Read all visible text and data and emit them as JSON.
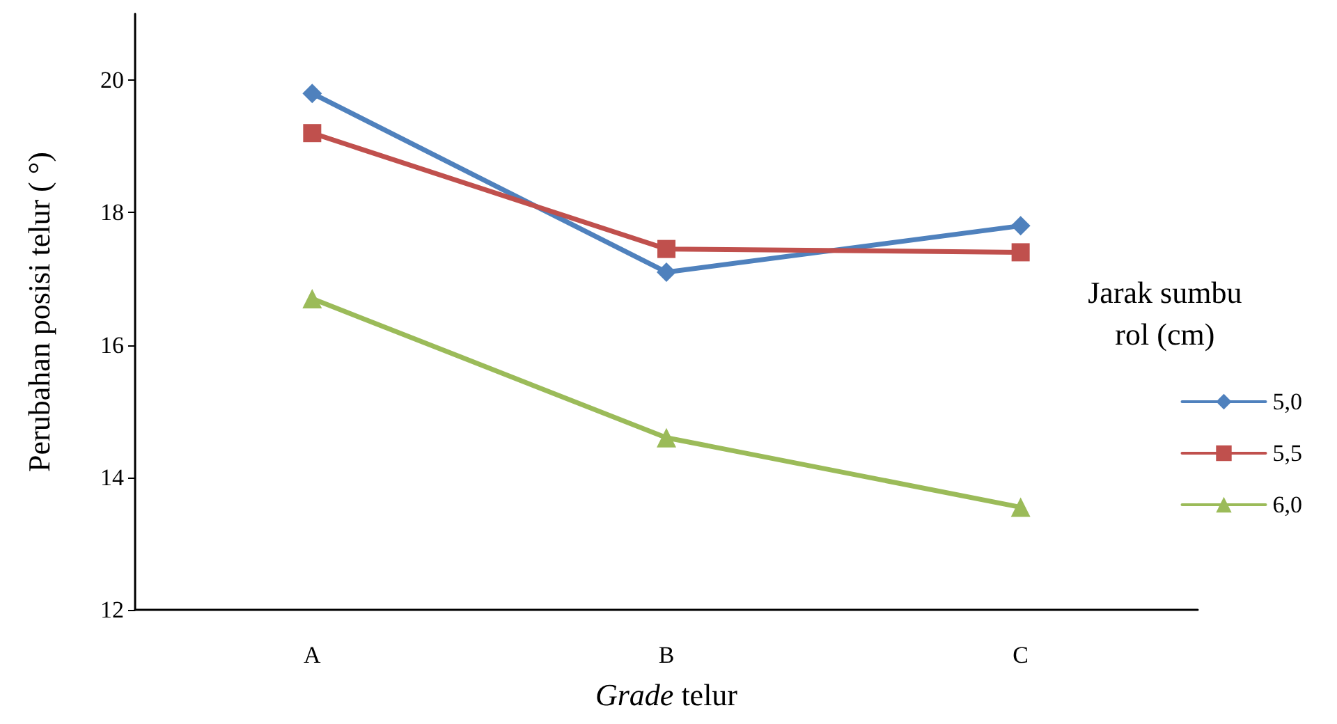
{
  "chart_data": {
    "type": "line",
    "xlabel": "Grade telur",
    "ylabel": "Perubahan posisi telur ( °)",
    "legend_title": "Jarak sumbu rol (cm)",
    "categories": [
      "A",
      "B",
      "C"
    ],
    "series": [
      {
        "name": "5,0",
        "color": "#4f81bd",
        "marker": "diamond",
        "values": [
          19.8,
          17.1,
          17.8
        ]
      },
      {
        "name": "5,5",
        "color": "#c0504d",
        "marker": "square",
        "values": [
          19.2,
          17.45,
          17.4
        ]
      },
      {
        "name": "6,0",
        "color": "#9bbb59",
        "marker": "triangle",
        "values": [
          16.7,
          14.6,
          13.55
        ]
      }
    ],
    "ylim": [
      12,
      21
    ],
    "yticks": [
      12,
      14,
      16,
      18,
      20
    ],
    "grid": false,
    "legend": "right",
    "line_style": "solid"
  }
}
